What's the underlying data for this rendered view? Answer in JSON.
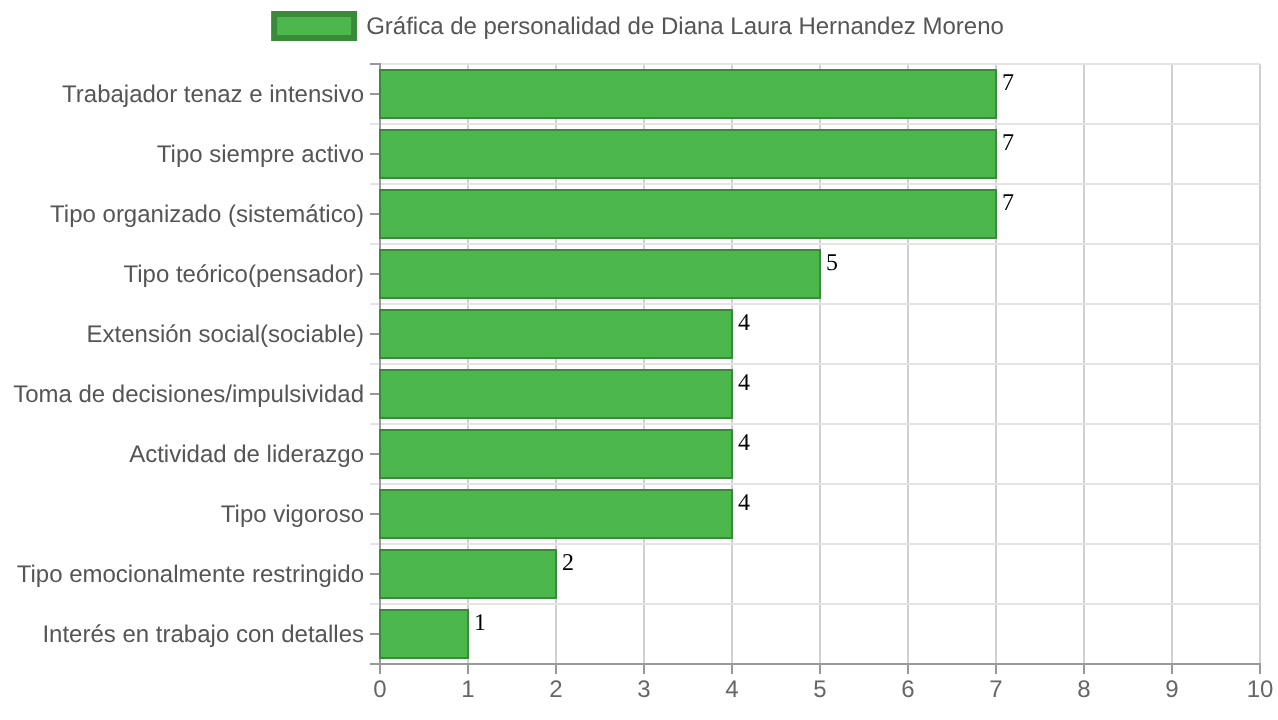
{
  "chart_data": {
    "type": "bar",
    "orientation": "horizontal",
    "categories": [
      "Trabajador tenaz e intensivo",
      "Tipo siempre activo",
      "Tipo organizado (sistemático)",
      "Tipo teórico(pensador)",
      "Extensión social(sociable)",
      "Toma de decisiones/impulsividad",
      "Actividad de liderazgo",
      "Tipo vigoroso",
      "Tipo emocionalmente restringido",
      "Interés en trabajo con detalles"
    ],
    "series": [
      {
        "name": "Gráfica de personalidad de Diana Laura Hernandez Moreno",
        "color": "#4cb74c",
        "values": [
          7,
          7,
          7,
          5,
          4,
          4,
          4,
          4,
          2,
          1
        ]
      }
    ],
    "xlim": [
      0,
      10
    ],
    "xticks": [
      0,
      1,
      2,
      3,
      4,
      5,
      6,
      7,
      8,
      9,
      10
    ],
    "grid": true,
    "legend": "top",
    "data_labels": true
  }
}
